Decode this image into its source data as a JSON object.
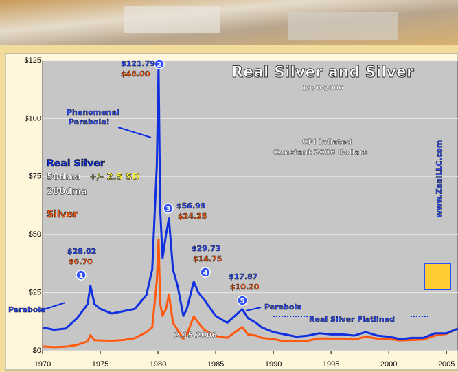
{
  "chart_data": {
    "type": "line",
    "title": "Real Silver and Silver",
    "subtitle": "1970-2006",
    "x": [
      1970,
      1971,
      1972,
      1973,
      1973.9,
      1974.15,
      1974.5,
      1975,
      1976,
      1977,
      1978,
      1979,
      1979.5,
      1979.9,
      1980.05,
      1980.2,
      1980.4,
      1980.7,
      1980.95,
      1981.3,
      1981.7,
      1982.2,
      1982.5,
      1983.1,
      1983.5,
      1984,
      1985,
      1986,
      1987.3,
      1987.8,
      1988.5,
      1989,
      1990,
      1991,
      1992,
      1993,
      1994,
      1995,
      1996,
      1997,
      1998,
      1999,
      2000,
      2001,
      2002,
      2003,
      2004,
      2005,
      2006
    ],
    "series": [
      {
        "name": "Real Silver",
        "color": "#1030e0",
        "values": [
          10,
          9,
          9.5,
          14,
          20,
          28.02,
          20,
          18,
          16,
          17,
          18,
          24,
          35,
          80,
          121.79,
          60,
          40,
          50,
          56.99,
          35,
          28,
          15,
          18,
          29.73,
          25,
          22,
          15,
          12,
          17.87,
          14,
          12,
          10,
          8,
          7,
          6,
          6.5,
          7.5,
          7,
          7,
          6.5,
          8,
          6.5,
          6,
          5,
          5.5,
          5.5,
          7.5,
          7.5,
          9.5
        ]
      },
      {
        "name": "Silver",
        "color": "#ff5a10",
        "values": [
          1.8,
          1.5,
          1.7,
          2.5,
          4,
          6.7,
          4.5,
          4.4,
          4.3,
          4.6,
          5.4,
          8,
          10,
          30,
          48,
          20,
          15,
          18,
          24.25,
          12,
          9,
          5,
          7,
          14.75,
          12,
          9,
          6.3,
          5.5,
          10.2,
          7,
          6.5,
          5.5,
          5,
          4,
          4,
          4.3,
          5.3,
          5.2,
          5.2,
          4.8,
          6,
          5.2,
          5,
          4.4,
          4.6,
          4.8,
          6.5,
          7.2,
          9.5
        ]
      }
    ],
    "legend_notes": [
      "50dma",
      "+/- 2.5 SD",
      "200dma"
    ],
    "xlim": [
      1970,
      2006
    ],
    "xticks": [
      1970,
      1975,
      1980,
      1985,
      1990,
      1995,
      2000,
      2005
    ],
    "ylim": [
      0,
      125
    ],
    "yticks": [
      {
        "value": 0,
        "label": "$0"
      },
      {
        "value": 25,
        "label": "$25"
      },
      {
        "value": 50,
        "label": "$50"
      },
      {
        "value": 75,
        "label": "$75"
      },
      {
        "value": 100,
        "label": "$100"
      },
      {
        "value": 125,
        "label": "$125"
      }
    ],
    "grid": true,
    "peaks": [
      {
        "number": "1",
        "real": "$28.02",
        "nominal": "$6.70"
      },
      {
        "number": "2",
        "real": "$121.79",
        "nominal": "$48.00"
      },
      {
        "number": "3",
        "real": "$56.99",
        "nominal": "$24.25"
      },
      {
        "number": "4",
        "real": "$29.73",
        "nominal": "$14.75"
      },
      {
        "number": "5",
        "real": "$17.87",
        "nominal": "$10.20"
      }
    ],
    "annotations": [
      "Phenomenal",
      "Parabola!",
      "Parabola",
      "Parabola",
      "Real Silver Flatlined",
      "CPI Inflated",
      "Constant 2006 Dollars",
      "www.ZealLLC.com",
      "2.15.2006"
    ]
  }
}
